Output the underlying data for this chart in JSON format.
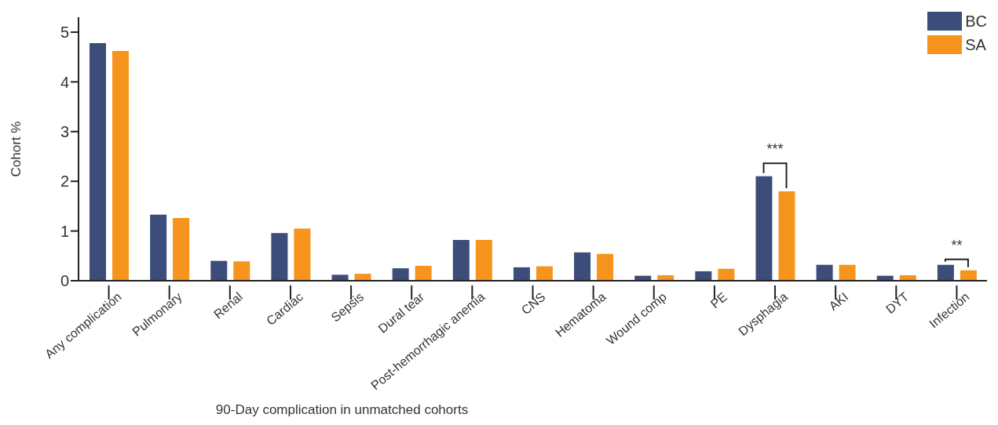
{
  "chart_data": {
    "type": "bar",
    "xlabel": "90-Day complication in unmatched cohorts",
    "ylabel": "Cohort %",
    "categories": [
      "Any complication",
      "Pulmonary",
      "Renal",
      "Cardiac",
      "Sepsis",
      "Dural tear",
      "Post-hemorrhagic anemia",
      "CNS",
      "Hematoma",
      "Wound comp",
      "PE",
      "Dysphagia",
      "AKI",
      "DYT",
      "Infection"
    ],
    "series": [
      {
        "name": "BC",
        "color": "#3d4d7a",
        "values": [
          4.78,
          1.33,
          0.4,
          0.96,
          0.12,
          0.25,
          0.82,
          0.27,
          0.57,
          0.1,
          0.19,
          2.1,
          0.32,
          0.1,
          0.32
        ]
      },
      {
        "name": "SA",
        "color": "#f7941d",
        "values": [
          4.62,
          1.26,
          0.39,
          1.05,
          0.14,
          0.3,
          0.82,
          0.29,
          0.54,
          0.11,
          0.24,
          1.8,
          0.32,
          0.11,
          0.21
        ]
      }
    ],
    "ylim": [
      0,
      5.3
    ],
    "yticks": [
      0,
      1,
      2,
      3,
      4,
      5
    ],
    "grid": false,
    "legend": "top right",
    "annotations": [
      "***",
      "**"
    ]
  }
}
